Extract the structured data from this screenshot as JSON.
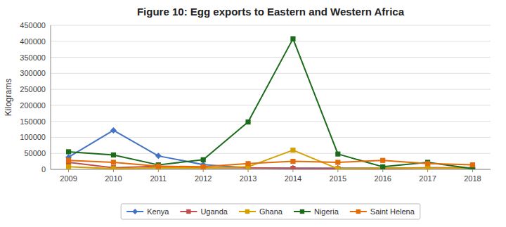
{
  "chart_data": {
    "type": "line",
    "title": "Figure 10: Egg exports to Eastern and Western Africa",
    "ylabel": "Kilograms",
    "x": [
      2009,
      2010,
      2011,
      2012,
      2013,
      2014,
      2015,
      2016,
      2017,
      2018
    ],
    "xlim": [
      2008.6,
      2018.4
    ],
    "xticks": [
      2009,
      2010,
      2011,
      2012,
      2013,
      2014,
      2015,
      2016,
      2017,
      2018
    ],
    "ylim": [
      0,
      450000
    ],
    "yticks": [
      0,
      50000,
      100000,
      150000,
      200000,
      250000,
      300000,
      350000,
      400000,
      450000
    ],
    "grid": true,
    "legend": "bottom",
    "series": [
      {
        "name": "Kenya",
        "color": "#4472C4",
        "marker": "diamond",
        "values": [
          38000,
          122000,
          42000,
          15000,
          5000,
          4000,
          4000,
          4000,
          5000,
          4000
        ]
      },
      {
        "name": "Uganda",
        "color": "#C0504D",
        "marker": "square",
        "values": [
          22000,
          5000,
          10000,
          5000,
          5000,
          3000,
          2000,
          2000,
          5000,
          5000
        ]
      },
      {
        "name": "Ghana",
        "color": "#D4A000",
        "marker": "square",
        "values": [
          8000,
          2000,
          5000,
          4000,
          8000,
          60000,
          2000,
          4000,
          4000,
          4000
        ]
      },
      {
        "name": "Nigeria",
        "color": "#1B6B1B",
        "marker": "square",
        "values": [
          55000,
          45000,
          14000,
          30000,
          148000,
          408000,
          48000,
          8000,
          22000,
          2000
        ]
      },
      {
        "name": "Saint Helena",
        "color": "#E36C09",
        "marker": "square",
        "values": [
          28000,
          22000,
          10000,
          8000,
          18000,
          25000,
          22000,
          28000,
          18000,
          14000
        ]
      }
    ]
  }
}
